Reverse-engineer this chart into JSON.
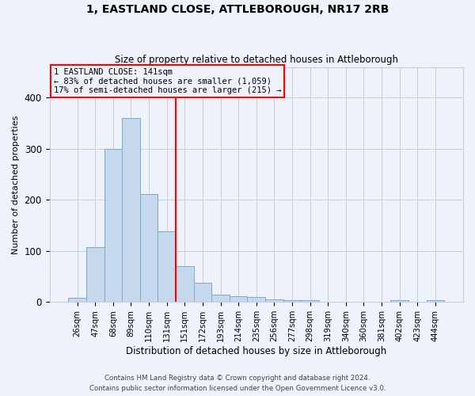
{
  "title": "1, EASTLAND CLOSE, ATTLEBOROUGH, NR17 2RB",
  "subtitle": "Size of property relative to detached houses in Attleborough",
  "xlabel": "Distribution of detached houses by size in Attleborough",
  "ylabel": "Number of detached properties",
  "categories": [
    "26sqm",
    "47sqm",
    "68sqm",
    "89sqm",
    "110sqm",
    "131sqm",
    "151sqm",
    "172sqm",
    "193sqm",
    "214sqm",
    "235sqm",
    "256sqm",
    "277sqm",
    "298sqm",
    "319sqm",
    "340sqm",
    "360sqm",
    "381sqm",
    "402sqm",
    "423sqm",
    "444sqm"
  ],
  "values": [
    8,
    108,
    300,
    360,
    212,
    138,
    70,
    38,
    14,
    12,
    10,
    5,
    4,
    3,
    1,
    0,
    0,
    0,
    4,
    0,
    3
  ],
  "bar_color": "#c5d8ec",
  "bar_edge_color": "#7aaad0",
  "bg_color": "#eef2fb",
  "grid_color": "#c5cce8",
  "annotation_line1": "1 EASTLAND CLOSE: 141sqm",
  "annotation_line2": "← 83% of detached houses are smaller (1,059)",
  "annotation_line3": "17% of semi-detached houses are larger (215) →",
  "vline_position": 5.5,
  "vline_color": "red",
  "annotation_box_color": "red",
  "ylim": [
    0,
    460
  ],
  "footnote1": "Contains HM Land Registry data © Crown copyright and database right 2024.",
  "footnote2": "Contains public sector information licensed under the Open Government Licence v3.0."
}
